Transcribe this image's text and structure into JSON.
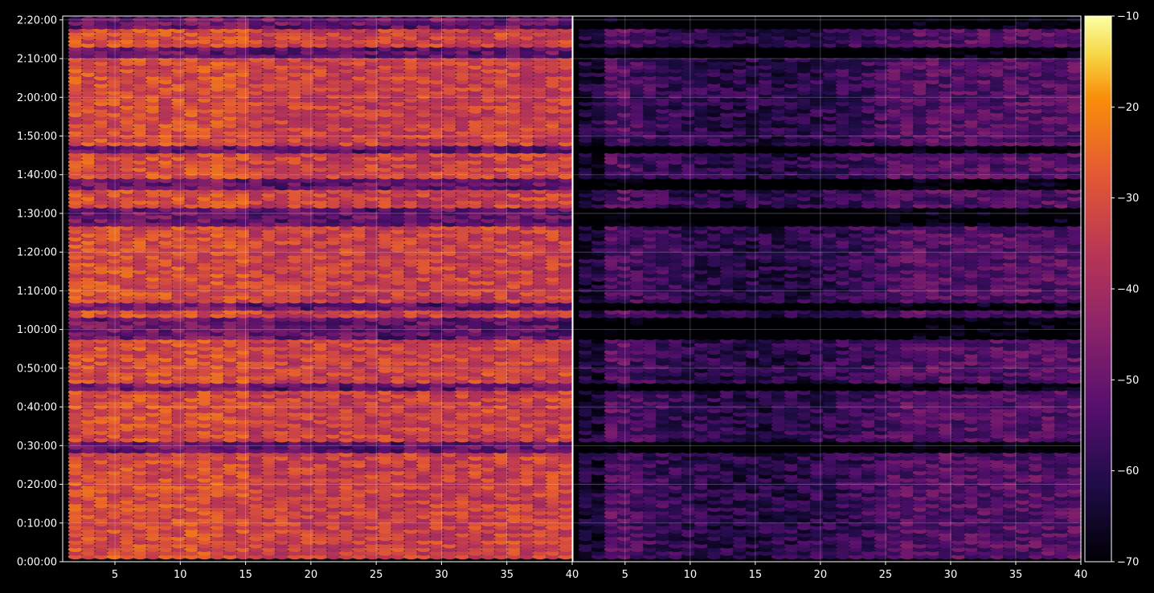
{
  "chart_data": {
    "type": "heatmap",
    "panels": [
      {
        "name": "",
        "x": {
          "min": 1,
          "max": 40,
          "ticks": [
            5,
            10,
            15,
            20,
            25,
            30,
            35,
            40
          ]
        }
      },
      {
        "name": "",
        "x": {
          "min": 1,
          "max": 40,
          "ticks": [
            5,
            10,
            15,
            20,
            25,
            30,
            35,
            40
          ]
        }
      }
    ],
    "y": {
      "range_seconds": [
        0,
        8460
      ],
      "tick_labels": [
        "0:00:00",
        "0:10:00",
        "0:20:00",
        "0:30:00",
        "0:40:00",
        "0:50:00",
        "1:00:00",
        "1:10:00",
        "1:20:00",
        "1:30:00",
        "1:40:00",
        "1:50:00",
        "2:00:00",
        "2:10:00",
        "2:20:00"
      ],
      "tick_values_seconds": [
        0,
        600,
        1200,
        1800,
        2400,
        3000,
        3600,
        4200,
        4800,
        5400,
        6000,
        6600,
        7200,
        7800,
        8400
      ]
    },
    "colorbar": {
      "colormap": "inferno",
      "min": -70,
      "max": -10,
      "ticks": [
        -10,
        -20,
        -30,
        -40,
        -50,
        -60,
        -70
      ],
      "tick_labels": [
        "−10",
        "−20",
        "−30",
        "−40",
        "−50",
        "−60",
        "−70"
      ]
    },
    "grid": true,
    "panel_levels": {
      "left_typical": -33,
      "right_typical": -55
    },
    "dark_bands_seconds": [
      [
        1700,
        1720
      ],
      [
        2640,
        2660
      ],
      [
        3480,
        3500
      ],
      [
        3580,
        3620
      ],
      [
        3660,
        3680
      ],
      [
        3900,
        3920
      ],
      [
        5240,
        5280
      ],
      [
        5330,
        5420
      ],
      [
        5830,
        5850
      ],
      [
        6370,
        6390
      ],
      [
        7880,
        7900
      ],
      [
        8320,
        8360
      ]
    ]
  }
}
